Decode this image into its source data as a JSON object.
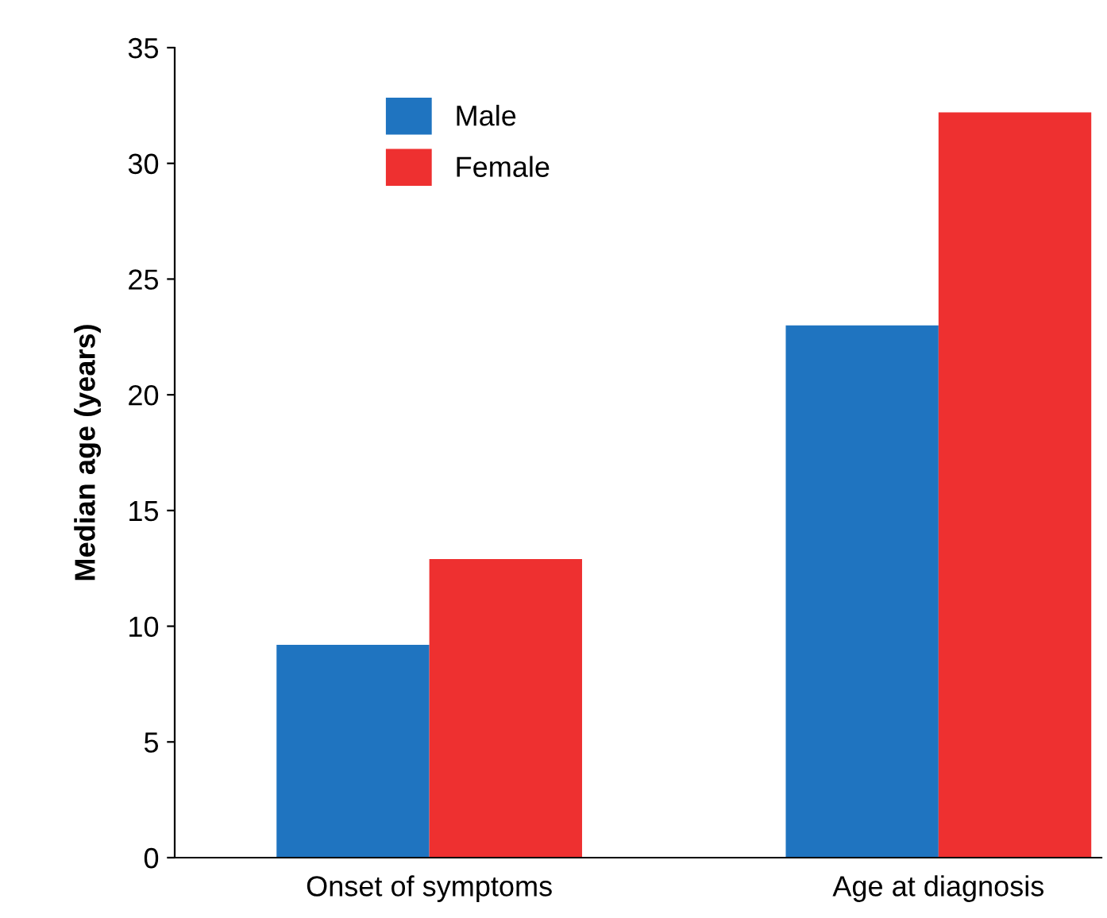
{
  "chart_data": {
    "type": "bar",
    "ylabel": "Median age (years)",
    "categories": [
      "Onset of symptoms",
      "Age at diagnosis"
    ],
    "series": [
      {
        "name": "Male",
        "color": "#1f74c0",
        "values": [
          9.2,
          23
        ]
      },
      {
        "name": "Female",
        "color": "#ee3030",
        "values": [
          12.9,
          32.2
        ]
      }
    ],
    "ylim": [
      0,
      35
    ],
    "yticks": [
      0,
      5,
      10,
      15,
      20,
      25,
      30,
      35
    ],
    "grid": false,
    "legend": "top left"
  }
}
